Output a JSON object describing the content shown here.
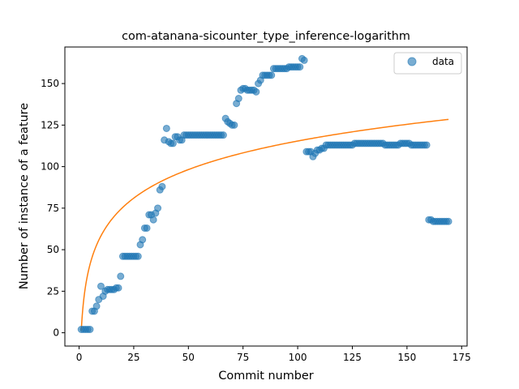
{
  "chart_data": {
    "type": "scatter",
    "title": "com-atanana-sicounter_type_inference-logarithm",
    "xlabel": "Commit number",
    "ylabel": "Number of instance of a feature",
    "xlim": [
      -6.5,
      177.5
    ],
    "ylim": [
      -8,
      172
    ],
    "xticks": [
      0,
      25,
      50,
      75,
      100,
      125,
      150,
      175
    ],
    "yticks": [
      0,
      25,
      50,
      75,
      100,
      125,
      150
    ],
    "legend": {
      "position": "top-right",
      "entries": [
        "data"
      ]
    },
    "colors": {
      "points": "#1f77b4",
      "fit": "#ff7f0e"
    },
    "grid": false,
    "series": [
      {
        "name": "data",
        "type": "scatter",
        "points": [
          [
            1,
            2
          ],
          [
            2,
            2
          ],
          [
            3,
            2
          ],
          [
            4,
            2
          ],
          [
            5,
            2
          ],
          [
            6,
            13
          ],
          [
            7,
            13
          ],
          [
            8,
            16
          ],
          [
            9,
            20
          ],
          [
            10,
            28
          ],
          [
            11,
            22
          ],
          [
            12,
            25
          ],
          [
            13,
            26
          ],
          [
            14,
            26
          ],
          [
            15,
            26
          ],
          [
            16,
            26
          ],
          [
            17,
            27
          ],
          [
            18,
            27
          ],
          [
            19,
            34
          ],
          [
            20,
            46
          ],
          [
            21,
            46
          ],
          [
            22,
            46
          ],
          [
            23,
            46
          ],
          [
            24,
            46
          ],
          [
            25,
            46
          ],
          [
            26,
            46
          ],
          [
            27,
            46
          ],
          [
            28,
            53
          ],
          [
            29,
            56
          ],
          [
            30,
            63
          ],
          [
            31,
            63
          ],
          [
            32,
            71
          ],
          [
            33,
            71
          ],
          [
            34,
            68
          ],
          [
            35,
            72
          ],
          [
            36,
            75
          ],
          [
            37,
            86
          ],
          [
            38,
            88
          ],
          [
            39,
            116
          ],
          [
            40,
            123
          ],
          [
            41,
            115
          ],
          [
            42,
            114
          ],
          [
            43,
            114
          ],
          [
            44,
            118
          ],
          [
            45,
            118
          ],
          [
            46,
            116
          ],
          [
            47,
            116
          ],
          [
            48,
            119
          ],
          [
            49,
            119
          ],
          [
            50,
            119
          ],
          [
            51,
            119
          ],
          [
            52,
            119
          ],
          [
            53,
            119
          ],
          [
            54,
            119
          ],
          [
            55,
            119
          ],
          [
            56,
            119
          ],
          [
            57,
            119
          ],
          [
            58,
            119
          ],
          [
            59,
            119
          ],
          [
            60,
            119
          ],
          [
            61,
            119
          ],
          [
            62,
            119
          ],
          [
            63,
            119
          ],
          [
            64,
            119
          ],
          [
            65,
            119
          ],
          [
            66,
            119
          ],
          [
            67,
            129
          ],
          [
            68,
            127
          ],
          [
            69,
            126
          ],
          [
            70,
            125
          ],
          [
            71,
            125
          ],
          [
            72,
            138
          ],
          [
            73,
            141
          ],
          [
            74,
            146
          ],
          [
            75,
            147
          ],
          [
            76,
            147
          ],
          [
            77,
            146
          ],
          [
            78,
            146
          ],
          [
            79,
            146
          ],
          [
            80,
            146
          ],
          [
            81,
            145
          ],
          [
            82,
            150
          ],
          [
            83,
            152
          ],
          [
            84,
            155
          ],
          [
            85,
            155
          ],
          [
            86,
            155
          ],
          [
            87,
            155
          ],
          [
            88,
            155
          ],
          [
            89,
            159
          ],
          [
            90,
            159
          ],
          [
            91,
            159
          ],
          [
            92,
            159
          ],
          [
            93,
            159
          ],
          [
            94,
            159
          ],
          [
            95,
            159
          ],
          [
            96,
            160
          ],
          [
            97,
            160
          ],
          [
            98,
            160
          ],
          [
            99,
            160
          ],
          [
            100,
            160
          ],
          [
            101,
            160
          ],
          [
            102,
            165
          ],
          [
            103,
            164
          ],
          [
            104,
            109
          ],
          [
            105,
            109
          ],
          [
            106,
            109
          ],
          [
            107,
            106
          ],
          [
            108,
            108
          ],
          [
            109,
            110
          ],
          [
            110,
            110
          ],
          [
            111,
            111
          ],
          [
            112,
            111
          ],
          [
            113,
            113
          ],
          [
            114,
            113
          ],
          [
            115,
            113
          ],
          [
            116,
            113
          ],
          [
            117,
            113
          ],
          [
            118,
            113
          ],
          [
            119,
            113
          ],
          [
            120,
            113
          ],
          [
            121,
            113
          ],
          [
            122,
            113
          ],
          [
            123,
            113
          ],
          [
            124,
            113
          ],
          [
            125,
            113
          ],
          [
            126,
            114
          ],
          [
            127,
            114
          ],
          [
            128,
            114
          ],
          [
            129,
            114
          ],
          [
            130,
            114
          ],
          [
            131,
            114
          ],
          [
            132,
            114
          ],
          [
            133,
            114
          ],
          [
            134,
            114
          ],
          [
            135,
            114
          ],
          [
            136,
            114
          ],
          [
            137,
            114
          ],
          [
            138,
            114
          ],
          [
            139,
            114
          ],
          [
            140,
            113
          ],
          [
            141,
            113
          ],
          [
            142,
            113
          ],
          [
            143,
            113
          ],
          [
            144,
            113
          ],
          [
            145,
            113
          ],
          [
            146,
            113
          ],
          [
            147,
            114
          ],
          [
            148,
            114
          ],
          [
            149,
            114
          ],
          [
            150,
            114
          ],
          [
            151,
            114
          ],
          [
            152,
            113
          ],
          [
            153,
            113
          ],
          [
            154,
            113
          ],
          [
            155,
            113
          ],
          [
            156,
            113
          ],
          [
            157,
            113
          ],
          [
            158,
            113
          ],
          [
            159,
            113
          ],
          [
            160,
            68
          ],
          [
            161,
            68
          ],
          [
            162,
            67
          ],
          [
            163,
            67
          ],
          [
            164,
            67
          ],
          [
            165,
            67
          ],
          [
            166,
            67
          ],
          [
            167,
            67
          ],
          [
            168,
            67
          ],
          [
            169,
            67
          ]
        ]
      },
      {
        "type": "line",
        "function": "logarithmic fit",
        "x_range": [
          1,
          169
        ],
        "a": 24.8,
        "b": 1.2
      }
    ]
  }
}
